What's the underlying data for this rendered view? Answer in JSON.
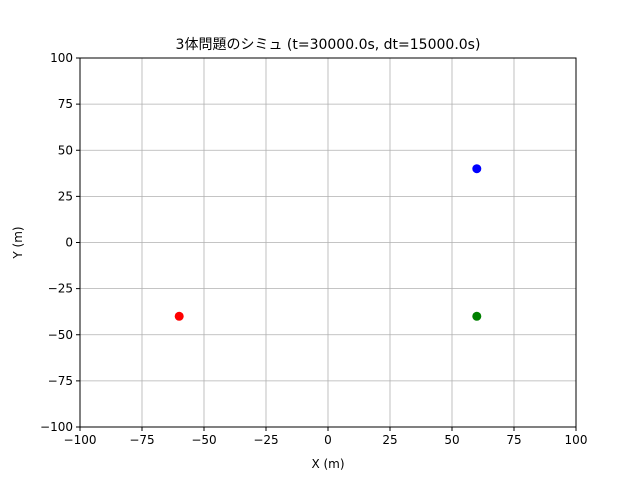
{
  "chart_data": {
    "type": "scatter",
    "title": "3体問題のシミュ (t=30000.0s, dt=15000.0s)",
    "xlabel": "X (m)",
    "ylabel": "Y (m)",
    "xlim": [
      -100,
      100
    ],
    "ylim": [
      -100,
      100
    ],
    "xticks": [
      -100,
      -75,
      -50,
      -25,
      0,
      25,
      50,
      75,
      100
    ],
    "yticks": [
      -100,
      -75,
      -50,
      -25,
      0,
      25,
      50,
      75,
      100
    ],
    "xtick_labels": [
      "−100",
      "−75",
      "−50",
      "−25",
      "0",
      "25",
      "50",
      "75",
      "100"
    ],
    "ytick_labels": [
      "−100",
      "−75",
      "−50",
      "−25",
      "0",
      "25",
      "50",
      "75",
      "100"
    ],
    "grid": true,
    "points": [
      {
        "x": -60,
        "y": -40,
        "color": "#ff0000"
      },
      {
        "x": 60,
        "y": -40,
        "color": "#008000"
      },
      {
        "x": 60,
        "y": 40,
        "color": "#0000ff"
      }
    ]
  }
}
